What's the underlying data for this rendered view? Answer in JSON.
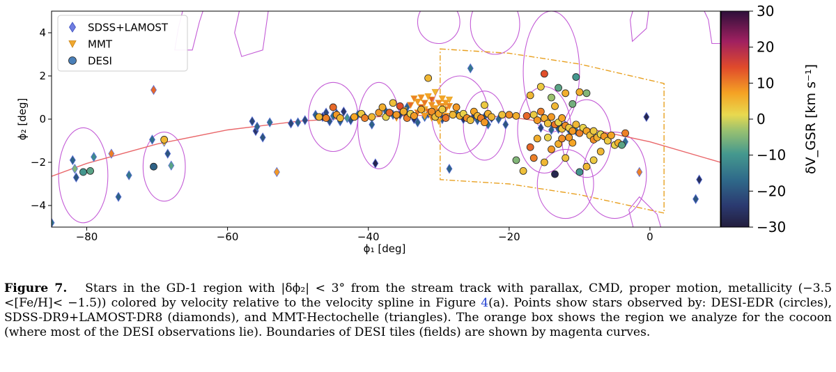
{
  "figure": {
    "x_label": "ϕ₁ [deg]",
    "y_label": "ϕ₂ [deg]",
    "colorbar_label": "δV_GSR [km s⁻¹]",
    "caption": {
      "label": "Figure 7.",
      "text_part1": "Stars in the GD-1 region with |δϕ₂| < 3° from the stream track with parallax, CMD, proper motion, metallicity (−3.5 <[Fe/H]< −1.5)) colored by velocity relative to the velocity spline in Figure ",
      "figure_ref": "4",
      "text_part2": "(a). Points show stars observed by: DESI-EDR (circles), SDSS-DR9+LAMOST-DR8 (diamonds), and MMT-Hectochelle (triangles). The orange box shows the region we analyze for the cocoon (where most of the DESI observations lie). Boundaries of DESI tiles (fields) are shown by magenta curves."
    }
  },
  "chart_data": {
    "type": "scatter",
    "xlabel": "ϕ₁ [deg]",
    "ylabel": "ϕ₂ [deg]",
    "xlim": [
      -85,
      10
    ],
    "ylim": [
      -5,
      5
    ],
    "x_ticks": [
      -80,
      -60,
      -40,
      -20,
      0
    ],
    "y_ticks": [
      -4,
      -2,
      0,
      2,
      4
    ],
    "x_tick_labels": [
      "−80",
      "−60",
      "−40",
      "−20",
      "0"
    ],
    "y_tick_labels": [
      "−4",
      "−2",
      "0",
      "2",
      "4"
    ],
    "legend": {
      "position": "upper-left",
      "entries": [
        {
          "label": "SDSS+LAMOST",
          "marker": "diamond",
          "color": "#6f7de0"
        },
        {
          "label": "MMT",
          "marker": "triangle-down",
          "color": "#f0a830"
        },
        {
          "label": "DESI",
          "marker": "circle",
          "color": "#4a7fb8"
        }
      ]
    },
    "colorbar": {
      "label": "δV_GSR [km s⁻¹]",
      "range": [
        -30,
        30
      ],
      "ticks": [
        30,
        20,
        10,
        0,
        -10,
        -20,
        -30
      ],
      "tick_labels": [
        "30",
        "20",
        "10",
        "0",
        "−10",
        "−20",
        "−30"
      ],
      "colormap": "inferno-viridis diverging"
    },
    "stream_track": [
      [
        -85,
        -2.65
      ],
      [
        -80,
        -2.05
      ],
      [
        -70,
        -1.15
      ],
      [
        -60,
        -0.5
      ],
      [
        -50,
        -0.1
      ],
      [
        -40,
        0.1
      ],
      [
        -30,
        0.2
      ],
      [
        -20,
        0.1
      ],
      [
        -10,
        -0.35
      ],
      [
        0,
        -1.05
      ],
      [
        10,
        -2.0
      ]
    ],
    "cocoon_box": {
      "color": "#e8a020",
      "outline": [
        [
          -29.8,
          3.25
        ],
        [
          -20,
          3.05
        ],
        [
          -10,
          2.55
        ],
        [
          2,
          1.65
        ],
        [
          2,
          -4.35
        ],
        [
          -10,
          -3.5
        ],
        [
          -20,
          -3.0
        ],
        [
          -29.8,
          -2.8
        ]
      ]
    },
    "series": [
      {
        "name": "SDSS+LAMOST",
        "marker": "diamond",
        "points": [
          [
            -85,
            -4.8,
            -15
          ],
          [
            -82,
            -1.9,
            -18
          ],
          [
            -81.5,
            -2.7,
            -20
          ],
          [
            -81.7,
            -2.3,
            -5
          ],
          [
            -79,
            -1.75,
            -12
          ],
          [
            -76.5,
            -1.6,
            10
          ],
          [
            -75.5,
            -3.6,
            -18
          ],
          [
            -74,
            -2.6,
            -15
          ],
          [
            -70.5,
            1.35,
            12
          ],
          [
            -70.7,
            -0.95,
            -16
          ],
          [
            -69,
            -1.05,
            5
          ],
          [
            -68.5,
            -1.6,
            -20
          ],
          [
            -68,
            -2.15,
            -8
          ],
          [
            -56.5,
            -0.1,
            -22
          ],
          [
            -56,
            -0.55,
            -25
          ],
          [
            -55.8,
            -0.35,
            -18
          ],
          [
            -55,
            -0.85,
            -20
          ],
          [
            -54,
            -0.15,
            -16
          ],
          [
            -53,
            -2.45,
            8
          ],
          [
            -51,
            -0.2,
            -22
          ],
          [
            -50,
            -0.15,
            -18
          ],
          [
            -49,
            -0.05,
            -22
          ],
          [
            -47.5,
            0.2,
            -18
          ],
          [
            -46.5,
            0.1,
            -25
          ],
          [
            -46,
            0.3,
            -22
          ],
          [
            -45.5,
            -0.1,
            -20
          ],
          [
            -45,
            0.15,
            -16
          ],
          [
            -44.5,
            0.25,
            -22
          ],
          [
            -44,
            -0.1,
            -18
          ],
          [
            -43.5,
            0.35,
            -25
          ],
          [
            -43,
            0.05,
            -10
          ],
          [
            -42.5,
            -0.05,
            -20
          ],
          [
            -41.5,
            0.2,
            -15
          ],
          [
            -40.5,
            0.1,
            -22
          ],
          [
            -39.5,
            -0.25,
            -18
          ],
          [
            -39,
            -2.05,
            -28
          ],
          [
            -37.5,
            0.35,
            -18
          ],
          [
            -36.5,
            0.2,
            -16
          ],
          [
            -35.5,
            0.2,
            -22
          ],
          [
            -34.5,
            0.55,
            -18
          ],
          [
            -33.5,
            0.0,
            -25
          ],
          [
            -33,
            -0.15,
            -18
          ],
          [
            -32,
            0.1,
            -15
          ],
          [
            -31.5,
            0.25,
            -22
          ],
          [
            -30.5,
            0.15,
            -18
          ],
          [
            -29.5,
            0.0,
            -20
          ],
          [
            -28.5,
            -2.3,
            -18
          ],
          [
            -27.5,
            0.3,
            -16
          ],
          [
            -26.5,
            0.0,
            -25
          ],
          [
            -25.5,
            2.35,
            -15
          ],
          [
            -25,
            0.15,
            -22
          ],
          [
            -24.5,
            -0.05,
            -18
          ],
          [
            -23.5,
            0.1,
            -20
          ],
          [
            -23,
            -0.25,
            -16
          ],
          [
            -22.5,
            0.05,
            -22
          ],
          [
            -21.5,
            0.0,
            -18
          ],
          [
            -20.5,
            -0.25,
            -20
          ],
          [
            -15.5,
            -0.4,
            -22
          ],
          [
            -14,
            -0.5,
            -18
          ],
          [
            -13,
            -0.45,
            -20
          ],
          [
            -12.5,
            -0.35,
            -16
          ],
          [
            -12,
            -0.3,
            -25
          ],
          [
            -11.5,
            -0.5,
            -18
          ],
          [
            -10.5,
            -0.55,
            -15
          ],
          [
            -3.5,
            -1.05,
            -16
          ],
          [
            -1.5,
            -2.45,
            10
          ],
          [
            -0.5,
            0.1,
            -28
          ],
          [
            6.5,
            -3.7,
            -20
          ],
          [
            7,
            -2.8,
            -26
          ]
        ]
      },
      {
        "name": "MMT",
        "marker": "triangle-down",
        "points": [
          [
            -34,
            0.65,
            12
          ],
          [
            -33.5,
            0.95,
            10
          ],
          [
            -33,
            0.8,
            8
          ],
          [
            -32.5,
            0.55,
            14
          ],
          [
            -32.5,
            1.0,
            9
          ],
          [
            -32,
            0.45,
            6
          ],
          [
            -32,
            0.75,
            11
          ],
          [
            -31.5,
            1.05,
            7
          ],
          [
            -31.5,
            0.35,
            12
          ],
          [
            -31,
            0.65,
            9
          ],
          [
            -31,
            0.9,
            13
          ],
          [
            -30.5,
            0.5,
            8
          ],
          [
            -30.5,
            1.25,
            5
          ],
          [
            -30,
            0.75,
            10
          ],
          [
            -30,
            0.35,
            12
          ],
          [
            -29.5,
            0.6,
            9
          ],
          [
            -29.5,
            0.95,
            7
          ],
          [
            -29,
            0.45,
            11
          ],
          [
            -29,
            0.75,
            8
          ],
          [
            -28.5,
            0.6,
            10
          ],
          [
            -28.5,
            0.9,
            6
          ],
          [
            -35,
            0.4,
            9
          ],
          [
            -34.5,
            0.2,
            7
          ],
          [
            -33,
            0.3,
            11
          ],
          [
            -32,
            0.15,
            8
          ],
          [
            -31,
            0.05,
            10
          ],
          [
            -30,
            -0.1,
            7
          ],
          [
            -29,
            0.15,
            9
          ],
          [
            -36,
            0.05,
            12
          ],
          [
            -28,
            0.25,
            8
          ]
        ]
      },
      {
        "name": "DESI",
        "marker": "circle",
        "points": [
          [
            -80.5,
            -2.45,
            -10
          ],
          [
            -79.5,
            -2.4,
            -8
          ],
          [
            -70.5,
            -2.2,
            -18
          ],
          [
            -69,
            -0.95,
            5
          ],
          [
            -47,
            0.1,
            5
          ],
          [
            -46,
            0.05,
            10
          ],
          [
            -45,
            0.55,
            12
          ],
          [
            -44.5,
            0.2,
            8
          ],
          [
            -44,
            0.05,
            5
          ],
          [
            -42,
            0.1,
            7
          ],
          [
            -41,
            0.25,
            3
          ],
          [
            -40.5,
            0.05,
            10
          ],
          [
            -39.5,
            0.1,
            5
          ],
          [
            -38.5,
            0.3,
            8
          ],
          [
            -38,
            0.55,
            6
          ],
          [
            -37.5,
            0.1,
            2
          ],
          [
            -37,
            0.3,
            12
          ],
          [
            -36.5,
            0.75,
            4
          ],
          [
            -36,
            0.2,
            8
          ],
          [
            -35.5,
            0.6,
            14
          ],
          [
            -35,
            0.35,
            6
          ],
          [
            -34.5,
            0.05,
            10
          ],
          [
            -34,
            0.25,
            2
          ],
          [
            -33.5,
            0.15,
            8
          ],
          [
            -32.5,
            0.45,
            6
          ],
          [
            -31.5,
            1.9,
            5
          ],
          [
            -31,
            0.35,
            9
          ],
          [
            -30.5,
            0.1,
            4
          ],
          [
            -30,
            0.25,
            7
          ],
          [
            -29.5,
            0.45,
            3
          ],
          [
            -29,
            0.05,
            11
          ],
          [
            -28,
            0.2,
            5
          ],
          [
            -27.5,
            0.55,
            8
          ],
          [
            -27,
            0.15,
            6
          ],
          [
            -26.5,
            0.25,
            2
          ],
          [
            -26,
            0.05,
            9
          ],
          [
            -25.5,
            -0.05,
            4
          ],
          [
            -25,
            0.35,
            7
          ],
          [
            -24.5,
            0.15,
            5
          ],
          [
            -24,
            0.05,
            10
          ],
          [
            -23.5,
            0.65,
            3
          ],
          [
            -23.5,
            -0.15,
            8
          ],
          [
            -23,
            0.25,
            6
          ],
          [
            -22.5,
            0.1,
            5
          ],
          [
            -21,
            0.2,
            4
          ],
          [
            -20,
            0.2,
            9
          ],
          [
            -19,
            0.15,
            6
          ],
          [
            -17.5,
            0.15,
            12
          ],
          [
            -17,
            1.1,
            5
          ],
          [
            -16.5,
            0.2,
            3
          ],
          [
            -16,
            -0.05,
            8
          ],
          [
            -15.5,
            0.35,
            10
          ],
          [
            -15,
            0.05,
            6
          ],
          [
            -15,
            2.1,
            14
          ],
          [
            -14.5,
            -0.2,
            4
          ],
          [
            -14,
            0.1,
            8
          ],
          [
            -14,
            1.0,
            -3
          ],
          [
            -13.5,
            -0.25,
            11
          ],
          [
            -13.5,
            0.6,
            5
          ],
          [
            -13,
            -0.15,
            2
          ],
          [
            -13,
            1.45,
            -8
          ],
          [
            -12.5,
            0.05,
            7
          ],
          [
            -12.5,
            -0.45,
            4
          ],
          [
            -12,
            -0.3,
            9
          ],
          [
            -12,
            1.2,
            6
          ],
          [
            -11.5,
            -0.4,
            3
          ],
          [
            -11,
            -0.55,
            8
          ],
          [
            -11,
            0.7,
            -6
          ],
          [
            -10.5,
            -0.25,
            5
          ],
          [
            -10.5,
            1.95,
            -10
          ],
          [
            -10,
            -0.65,
            10
          ],
          [
            -10,
            1.25,
            6
          ],
          [
            -9.5,
            -0.4,
            2
          ],
          [
            -9,
            -0.55,
            7
          ],
          [
            -9,
            1.2,
            -5
          ],
          [
            -8.5,
            -0.75,
            4
          ],
          [
            -8,
            -0.95,
            9
          ],
          [
            -8,
            -0.55,
            3
          ],
          [
            -7.5,
            -0.85,
            6
          ],
          [
            -7,
            -0.7,
            1
          ],
          [
            -7,
            -1.5,
            5
          ],
          [
            -6.5,
            -0.8,
            8
          ],
          [
            -6,
            -1.0,
            3
          ],
          [
            -5.5,
            -0.75,
            7
          ],
          [
            -5,
            -1.2,
            2
          ],
          [
            -4.5,
            -1.1,
            6
          ],
          [
            -4,
            -1.2,
            -8
          ],
          [
            -3.5,
            -0.65,
            10
          ],
          [
            -13,
            -1.15,
            6
          ],
          [
            -14,
            -1.4,
            8
          ],
          [
            -15,
            -2.0,
            5
          ],
          [
            -13.5,
            -2.55,
            -28
          ],
          [
            -12,
            -1.8,
            4
          ],
          [
            -11,
            -1.1,
            7
          ],
          [
            -10,
            -2.45,
            -10
          ],
          [
            -9,
            -2.2,
            5
          ],
          [
            -8,
            -1.9,
            3
          ],
          [
            -12.5,
            -0.9,
            9
          ],
          [
            -16,
            -0.9,
            6
          ],
          [
            -17,
            -1.3,
            12
          ],
          [
            -18,
            -2.4,
            4
          ],
          [
            -19,
            -1.9,
            -5
          ],
          [
            -16.5,
            -1.8,
            10
          ],
          [
            -14.5,
            -0.85,
            2
          ],
          [
            -11.5,
            -0.85,
            8
          ],
          [
            -15.5,
            1.5,
            3
          ]
        ]
      }
    ]
  }
}
